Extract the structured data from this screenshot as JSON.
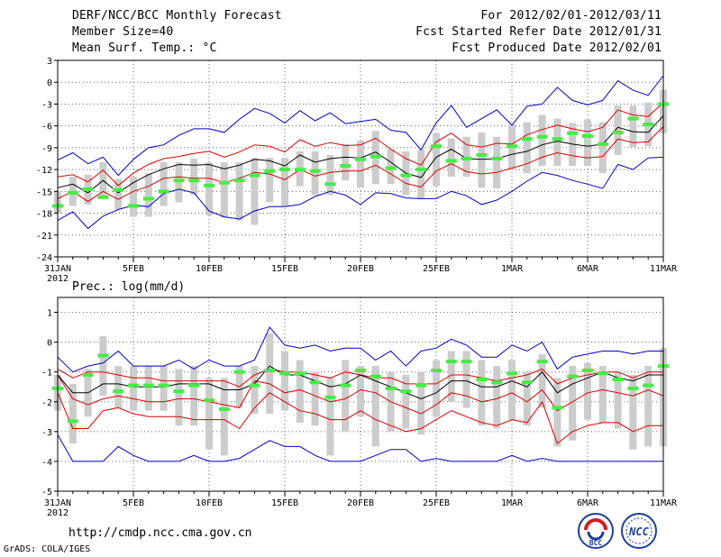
{
  "header": {
    "title": "DERF/NCC/BCC Monthly Forecast",
    "member_size": "Member Size=40",
    "variable": "Mean Surf. Temp.: °C",
    "period": "For 2012/02/01-2012/03/11",
    "start_date": "Fcst Started Refer Date 2012/01/31",
    "produced_date": "Fcst Produced Date 2012/02/01"
  },
  "footer": {
    "url": "http://cmdp.ncc.cma.gov.cn",
    "credit": "GrADS: COLA/IGES",
    "logo_bcc": "BCC",
    "logo_ncc": "NCC"
  },
  "colors": {
    "envelope": "#0000cc",
    "spread": "#dd0000",
    "mean": "#000000",
    "median": "#44ee44",
    "box": "#cccccc"
  },
  "chart_data": [
    {
      "type": "line",
      "title": "Mean Surf. Temp.: °C",
      "xlabel": "",
      "ylabel": "",
      "x_tick_labels": [
        "31JAN",
        "5FEB",
        "10FEB",
        "15FEB",
        "20FEB",
        "25FEB",
        "1MAR",
        "6MAR",
        "11MAR"
      ],
      "x_year_label": "2012",
      "x_tick_days": [
        0,
        5,
        10,
        15,
        20,
        25,
        30,
        35,
        40
      ],
      "ylim": [
        -24,
        3
      ],
      "y_ticks": [
        3,
        0,
        -3,
        -6,
        -9,
        -12,
        -15,
        -18,
        -21,
        -24
      ],
      "grid": true,
      "series": [
        {
          "name": "max",
          "values": [
            -10.7,
            -9.7,
            -11.2,
            -10.3,
            -12.8,
            -10.6,
            -9.0,
            -8.6,
            -7.3,
            -6.4,
            -6.4,
            -6.9,
            -5.1,
            -3.6,
            -4.3,
            -5.6,
            -3.9,
            -5.3,
            -4.2,
            -5.7,
            -5.4,
            -5.1,
            -6.6,
            -6.9,
            -9.3,
            -5.6,
            -3.2,
            -6.2,
            -5.0,
            -3.8,
            -5.9,
            -3.3,
            -3.0,
            -0.7,
            -2.5,
            -3.1,
            -2.5,
            0.2,
            -1.1,
            -1.8,
            0.9
          ]
        },
        {
          "name": "upper",
          "values": [
            -13.0,
            -12.7,
            -13.7,
            -12.1,
            -14.2,
            -12.5,
            -11.3,
            -10.5,
            -10.2,
            -9.8,
            -9.5,
            -10.3,
            -9.6,
            -8.6,
            -8.8,
            -9.6,
            -7.9,
            -8.8,
            -8.3,
            -8.7,
            -8.6,
            -7.7,
            -9.2,
            -10.5,
            -11.4,
            -8.2,
            -7.0,
            -8.6,
            -8.9,
            -8.4,
            -8.5,
            -7.2,
            -6.5,
            -5.9,
            -6.4,
            -6.8,
            -6.2,
            -3.8,
            -4.5,
            -4.7,
            -2.8
          ]
        },
        {
          "name": "mean",
          "values": [
            -14.5,
            -14.0,
            -15.2,
            -13.5,
            -15.2,
            -13.8,
            -12.7,
            -11.9,
            -11.3,
            -11.4,
            -11.3,
            -11.9,
            -11.4,
            -10.6,
            -10.8,
            -11.5,
            -10.0,
            -11.0,
            -10.5,
            -10.3,
            -10.4,
            -9.6,
            -11.0,
            -12.5,
            -13.1,
            -10.3,
            -9.2,
            -10.5,
            -10.6,
            -10.5,
            -9.9,
            -9.5,
            -8.6,
            -8.1,
            -8.5,
            -8.8,
            -8.5,
            -6.2,
            -6.8,
            -6.9,
            -4.6
          ]
        },
        {
          "name": "lower",
          "values": [
            -16.0,
            -15.0,
            -16.4,
            -15.0,
            -16.1,
            -15.0,
            -14.3,
            -13.2,
            -13.0,
            -13.2,
            -13.2,
            -13.8,
            -13.2,
            -12.4,
            -12.6,
            -13.4,
            -12.0,
            -12.9,
            -12.4,
            -12.2,
            -12.2,
            -11.4,
            -12.6,
            -13.9,
            -14.4,
            -12.2,
            -11.2,
            -12.3,
            -12.6,
            -12.4,
            -11.8,
            -11.2,
            -10.3,
            -9.7,
            -10.1,
            -10.4,
            -10.2,
            -7.8,
            -8.3,
            -8.2,
            -6.1
          ]
        },
        {
          "name": "min",
          "values": [
            -19.0,
            -17.8,
            -20.1,
            -18.4,
            -17.5,
            -16.9,
            -17.1,
            -15.3,
            -14.7,
            -15.2,
            -17.7,
            -18.5,
            -18.8,
            -17.7,
            -17.1,
            -17.1,
            -16.8,
            -15.7,
            -15.0,
            -15.5,
            -16.8,
            -15.2,
            -15.3,
            -15.9,
            -16.0,
            -16.0,
            -15.0,
            -15.6,
            -16.8,
            -16.2,
            -15.0,
            -13.6,
            -12.4,
            -12.8,
            -13.5,
            -14.0,
            -14.6,
            -11.3,
            -12.0,
            -10.4,
            -10.3
          ]
        },
        {
          "name": "median",
          "values": [
            -17.0,
            -15.2,
            -14.7,
            -15.8,
            -14.8,
            -17.0,
            -16.0,
            -15.0,
            -13.5,
            -13.5,
            -14.2,
            -13.8,
            -13.5,
            -12.8,
            -12.2,
            -12.0,
            -12.0,
            -12.2,
            -14.0,
            -11.5,
            -10.6,
            -10.2,
            -11.8,
            -12.8,
            -12.0,
            -8.8,
            -10.8,
            -10.5,
            -10.0,
            -10.5,
            -8.8,
            -7.8,
            -7.5,
            -7.8,
            -7.0,
            -7.4,
            -8.5,
            -6.9,
            -5.0,
            -5.8,
            -3.0
          ]
        },
        {
          "name": "box_high",
          "values": [
            -15.0,
            -13.0,
            -12.7,
            -11.0,
            -13.3,
            -13.0,
            -12.5,
            -11.0,
            -11.0,
            -10.5,
            -11.0,
            -11.0,
            -11.0,
            -10.4,
            -10.4,
            -10.4,
            -9.5,
            -9.5,
            -10.0,
            -8.5,
            -8.0,
            -6.7,
            -9.2,
            -9.5,
            -9.2,
            -7.0,
            -7.7,
            -7.5,
            -6.9,
            -7.5,
            -5.8,
            -5.5,
            -4.5,
            -5.0,
            -5.6,
            -5.1,
            -5.5,
            -3.2,
            -3.2,
            -2.8,
            -1.0
          ]
        },
        {
          "name": "box_low",
          "values": [
            -18.0,
            -17.0,
            -16.8,
            -15.8,
            -17.5,
            -18.5,
            -18.5,
            -17.0,
            -16.5,
            -15.5,
            -18.3,
            -18.6,
            -19.0,
            -19.6,
            -16.5,
            -17.0,
            -14.3,
            -15.5,
            -15.5,
            -13.5,
            -14.5,
            -14.0,
            -14.0,
            -15.5,
            -16.0,
            -14.3,
            -13.0,
            -13.0,
            -14.5,
            -14.6,
            -12.0,
            -12.5,
            -11.5,
            -11.5,
            -11.5,
            -11.5,
            -12.5,
            -10.0,
            -8.9,
            -8.8,
            -7.0
          ]
        }
      ]
    },
    {
      "type": "line",
      "title": "Prec.: log(mm/d)",
      "xlabel": "",
      "ylabel": "",
      "x_tick_labels": [
        "31JAN",
        "5FEB",
        "10FEB",
        "15FEB",
        "20FEB",
        "25FEB",
        "1MAR",
        "6MAR",
        "11MAR"
      ],
      "x_year_label": "2012",
      "x_tick_days": [
        0,
        5,
        10,
        15,
        20,
        25,
        30,
        35,
        40
      ],
      "ylim": [
        -5,
        1.5
      ],
      "y_ticks": [
        1,
        0,
        -1,
        -2,
        -3,
        -4,
        -5
      ],
      "grid": true,
      "series": [
        {
          "name": "max",
          "values": [
            -0.5,
            -1.0,
            -0.8,
            -0.7,
            -0.3,
            -0.8,
            -0.8,
            -0.8,
            -0.6,
            -0.9,
            -0.6,
            -0.8,
            -0.8,
            -0.6,
            0.5,
            -0.1,
            -0.2,
            -0.1,
            -0.3,
            -0.2,
            -0.2,
            -0.6,
            -0.3,
            -0.8,
            -0.3,
            -0.2,
            0.1,
            -0.1,
            -0.5,
            -0.5,
            -0.1,
            -0.3,
            0.0,
            -0.9,
            -0.5,
            -0.4,
            -0.3,
            -0.3,
            -0.4,
            -0.3,
            -0.3
          ]
        },
        {
          "name": "mean",
          "values": [
            -1.1,
            -1.7,
            -1.7,
            -1.4,
            -1.4,
            -1.5,
            -1.5,
            -1.5,
            -1.4,
            -1.4,
            -1.4,
            -1.6,
            -1.6,
            -1.4,
            -0.8,
            -1.1,
            -1.1,
            -1.3,
            -1.5,
            -1.4,
            -1.1,
            -1.3,
            -1.5,
            -1.7,
            -1.9,
            -1.7,
            -1.3,
            -1.3,
            -1.5,
            -1.5,
            -1.3,
            -1.5,
            -1.0,
            -1.7,
            -1.4,
            -1.2,
            -1.0,
            -1.2,
            -1.3,
            -1.1,
            -1.1
          ]
        },
        {
          "name": "upper",
          "values": [
            -0.9,
            -1.2,
            -1.0,
            -1.0,
            -1.1,
            -1.2,
            -1.2,
            -1.3,
            -1.3,
            -1.3,
            -1.3,
            -1.3,
            -1.5,
            -1.1,
            -0.9,
            -1.0,
            -1.0,
            -1.1,
            -1.2,
            -1.0,
            -1.1,
            -1.2,
            -1.2,
            -1.4,
            -1.4,
            -1.4,
            -1.1,
            -1.1,
            -1.2,
            -1.3,
            -1.2,
            -1.1,
            -0.9,
            -1.4,
            -1.2,
            -1.1,
            -1.0,
            -1.0,
            -1.2,
            -1.0,
            -1.0
          ]
        },
        {
          "name": "lower1",
          "values": [
            -1.1,
            -1.9,
            -2.1,
            -1.9,
            -1.8,
            -1.9,
            -2.0,
            -2.0,
            -1.9,
            -1.9,
            -2.0,
            -2.1,
            -2.2,
            -1.3,
            -1.4,
            -1.7,
            -1.6,
            -1.8,
            -2.0,
            -1.9,
            -1.6,
            -1.7,
            -2.0,
            -2.2,
            -2.4,
            -2.1,
            -1.7,
            -1.8,
            -2.0,
            -1.9,
            -1.7,
            -2.0,
            -1.6,
            -2.3,
            -2.0,
            -1.7,
            -1.6,
            -1.7,
            -1.8,
            -1.6,
            -1.8
          ]
        },
        {
          "name": "lower2",
          "values": [
            -1.7,
            -2.9,
            -2.9,
            -2.3,
            -2.2,
            -2.4,
            -2.5,
            -2.5,
            -2.5,
            -2.6,
            -2.6,
            -2.6,
            -2.9,
            -2.2,
            -1.7,
            -2.0,
            -2.3,
            -2.4,
            -2.6,
            -2.6,
            -2.3,
            -2.6,
            -2.8,
            -3.0,
            -2.9,
            -2.6,
            -2.3,
            -2.5,
            -2.7,
            -2.8,
            -2.6,
            -2.7,
            -2.0,
            -3.4,
            -3.0,
            -2.8,
            -2.7,
            -2.7,
            -3.0,
            -2.8,
            -2.8
          ]
        },
        {
          "name": "min",
          "values": [
            -3.1,
            -4.0,
            -4.0,
            -4.0,
            -3.5,
            -3.8,
            -4.0,
            -4.0,
            -4.0,
            -3.8,
            -4.0,
            -4.0,
            -3.9,
            -3.6,
            -3.3,
            -3.5,
            -3.5,
            -3.8,
            -4.0,
            -4.0,
            -4.0,
            -3.8,
            -3.6,
            -3.6,
            -4.0,
            -3.9,
            -4.0,
            -4.0,
            -4.0,
            -4.0,
            -3.8,
            -4.0,
            -3.9,
            -4.0,
            -4.0,
            -4.0,
            -4.0,
            -4.0,
            -4.0,
            -4.0,
            -4.0
          ]
        },
        {
          "name": "median",
          "values": [
            -1.55,
            -2.65,
            -1.1,
            -0.45,
            -1.65,
            -1.45,
            -1.45,
            -1.45,
            -1.65,
            -1.45,
            -1.95,
            -2.25,
            -1.0,
            -1.45,
            -0.95,
            -1.05,
            -1.05,
            -1.35,
            -1.85,
            -1.45,
            -0.95,
            -1.15,
            -1.55,
            -1.65,
            -1.45,
            -0.95,
            -0.65,
            -0.65,
            -1.25,
            -1.35,
            -1.05,
            -1.35,
            -0.65,
            -2.2,
            -1.15,
            -0.95,
            -1.05,
            -1.25,
            -1.55,
            -1.45,
            -0.8
          ]
        },
        {
          "name": "box_high",
          "values": [
            -1.1,
            -1.4,
            -0.9,
            0.2,
            -0.8,
            -0.8,
            -0.8,
            -0.8,
            -0.9,
            -0.8,
            -1.2,
            -1.2,
            -0.8,
            -0.8,
            0.3,
            -0.3,
            -0.6,
            -1.0,
            -1.2,
            -0.6,
            -0.8,
            -0.8,
            -1.0,
            -1.1,
            -1.0,
            -0.6,
            -0.3,
            -0.3,
            -0.6,
            -0.8,
            -0.6,
            -1.0,
            -0.4,
            -1.2,
            -0.8,
            -0.7,
            -0.8,
            -1.0,
            -1.1,
            -0.8,
            -0.2
          ]
        },
        {
          "name": "box_low",
          "values": [
            -2.3,
            -3.4,
            -2.5,
            -1.8,
            -2.2,
            -2.3,
            -2.3,
            -2.3,
            -2.8,
            -2.8,
            -3.6,
            -3.8,
            -2.2,
            -2.4,
            -2.4,
            -2.3,
            -2.7,
            -2.8,
            -3.8,
            -3.0,
            -2.5,
            -3.5,
            -3.0,
            -2.9,
            -3.1,
            -2.5,
            -2.0,
            -2.2,
            -2.8,
            -2.9,
            -2.6,
            -2.8,
            -2.2,
            -3.5,
            -3.3,
            -2.6,
            -2.7,
            -2.9,
            -3.6,
            -3.5,
            -3.5
          ]
        }
      ]
    }
  ]
}
